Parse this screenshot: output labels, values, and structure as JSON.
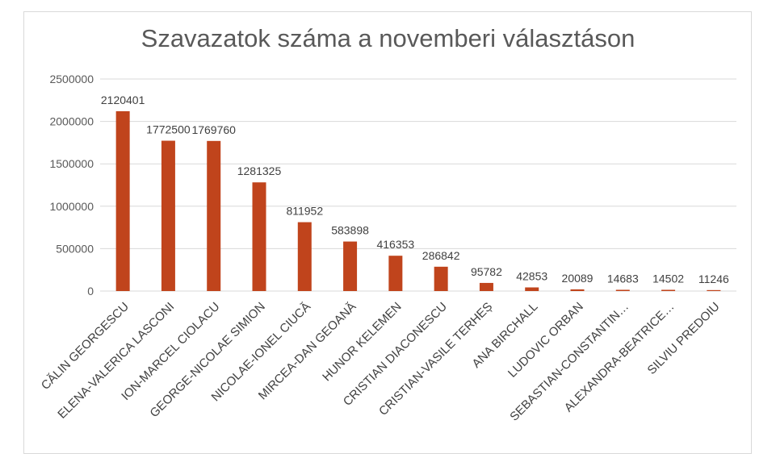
{
  "chart_data": {
    "type": "bar",
    "title": "Szavazatok száma a novemberi választáson",
    "xlabel": "",
    "ylabel": "",
    "ylim": [
      0,
      2500000
    ],
    "yticks": [
      0,
      500000,
      1000000,
      1500000,
      2000000,
      2500000
    ],
    "ytick_labels": [
      "0",
      "500000",
      "1000000",
      "1500000",
      "2000000",
      "2500000"
    ],
    "grid": true,
    "legend": "none",
    "bar_color": "#c0441c",
    "categories": [
      "CĂLIN GEORGESCU",
      "ELENA-VALERICA LASCONI",
      "ION-MARCEL CIOLACU",
      "GEORGE-NICOLAE SIMION",
      "NICOLAE-IONEL CIUCĂ",
      "MIRCEA-DAN GEOANĂ",
      "HUNOR KELEMEN",
      "CRISTIAN DIACONESCU",
      "CRISTIAN-VASILE TERHEȘ",
      "ANA BIRCHALL",
      "LUDOVIC ORBAN",
      "SEBASTIAN-CONSTANTIN…",
      "ALEXANDRA-BEATRICE…",
      "SILVIU PREDOIU"
    ],
    "values": [
      2120401,
      1772500,
      1769760,
      1281325,
      811952,
      583898,
      416353,
      286842,
      95782,
      42853,
      20089,
      14683,
      14502,
      11246
    ]
  }
}
